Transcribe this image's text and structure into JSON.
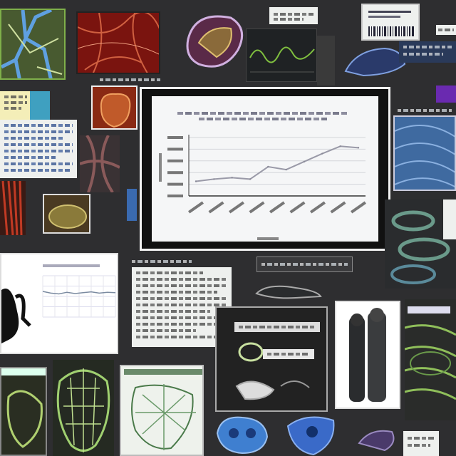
{
  "board": {
    "background": "#2e2e30",
    "accent_colors": {
      "green": "#8fbf5a",
      "blue": "#3f7fd0",
      "red": "#8a1a14",
      "paper": "#eef0ee"
    }
  },
  "center_chart": {
    "frame_color": "#111111",
    "grid": true,
    "line_color": "#9a9aa8",
    "chart_data": {
      "type": "line",
      "values": [
        20,
        23,
        25,
        23,
        40,
        36,
        47,
        58,
        68,
        66
      ],
      "ylim": [
        0,
        80
      ]
    }
  },
  "left_chart": {
    "grid": true,
    "chart_data": {
      "type": "line",
      "values": [
        62,
        58,
        56,
        60,
        57,
        59,
        61,
        58,
        60,
        59
      ],
      "ylim": [
        0,
        100
      ]
    }
  },
  "small_waveform": {
    "line_color": "#7fbf3f"
  },
  "icons": [
    "vein-diagram-icon",
    "heart-illustration-icon",
    "skull-illustration-icon",
    "human-silhouette-icon",
    "ring-diagram-icon"
  ]
}
